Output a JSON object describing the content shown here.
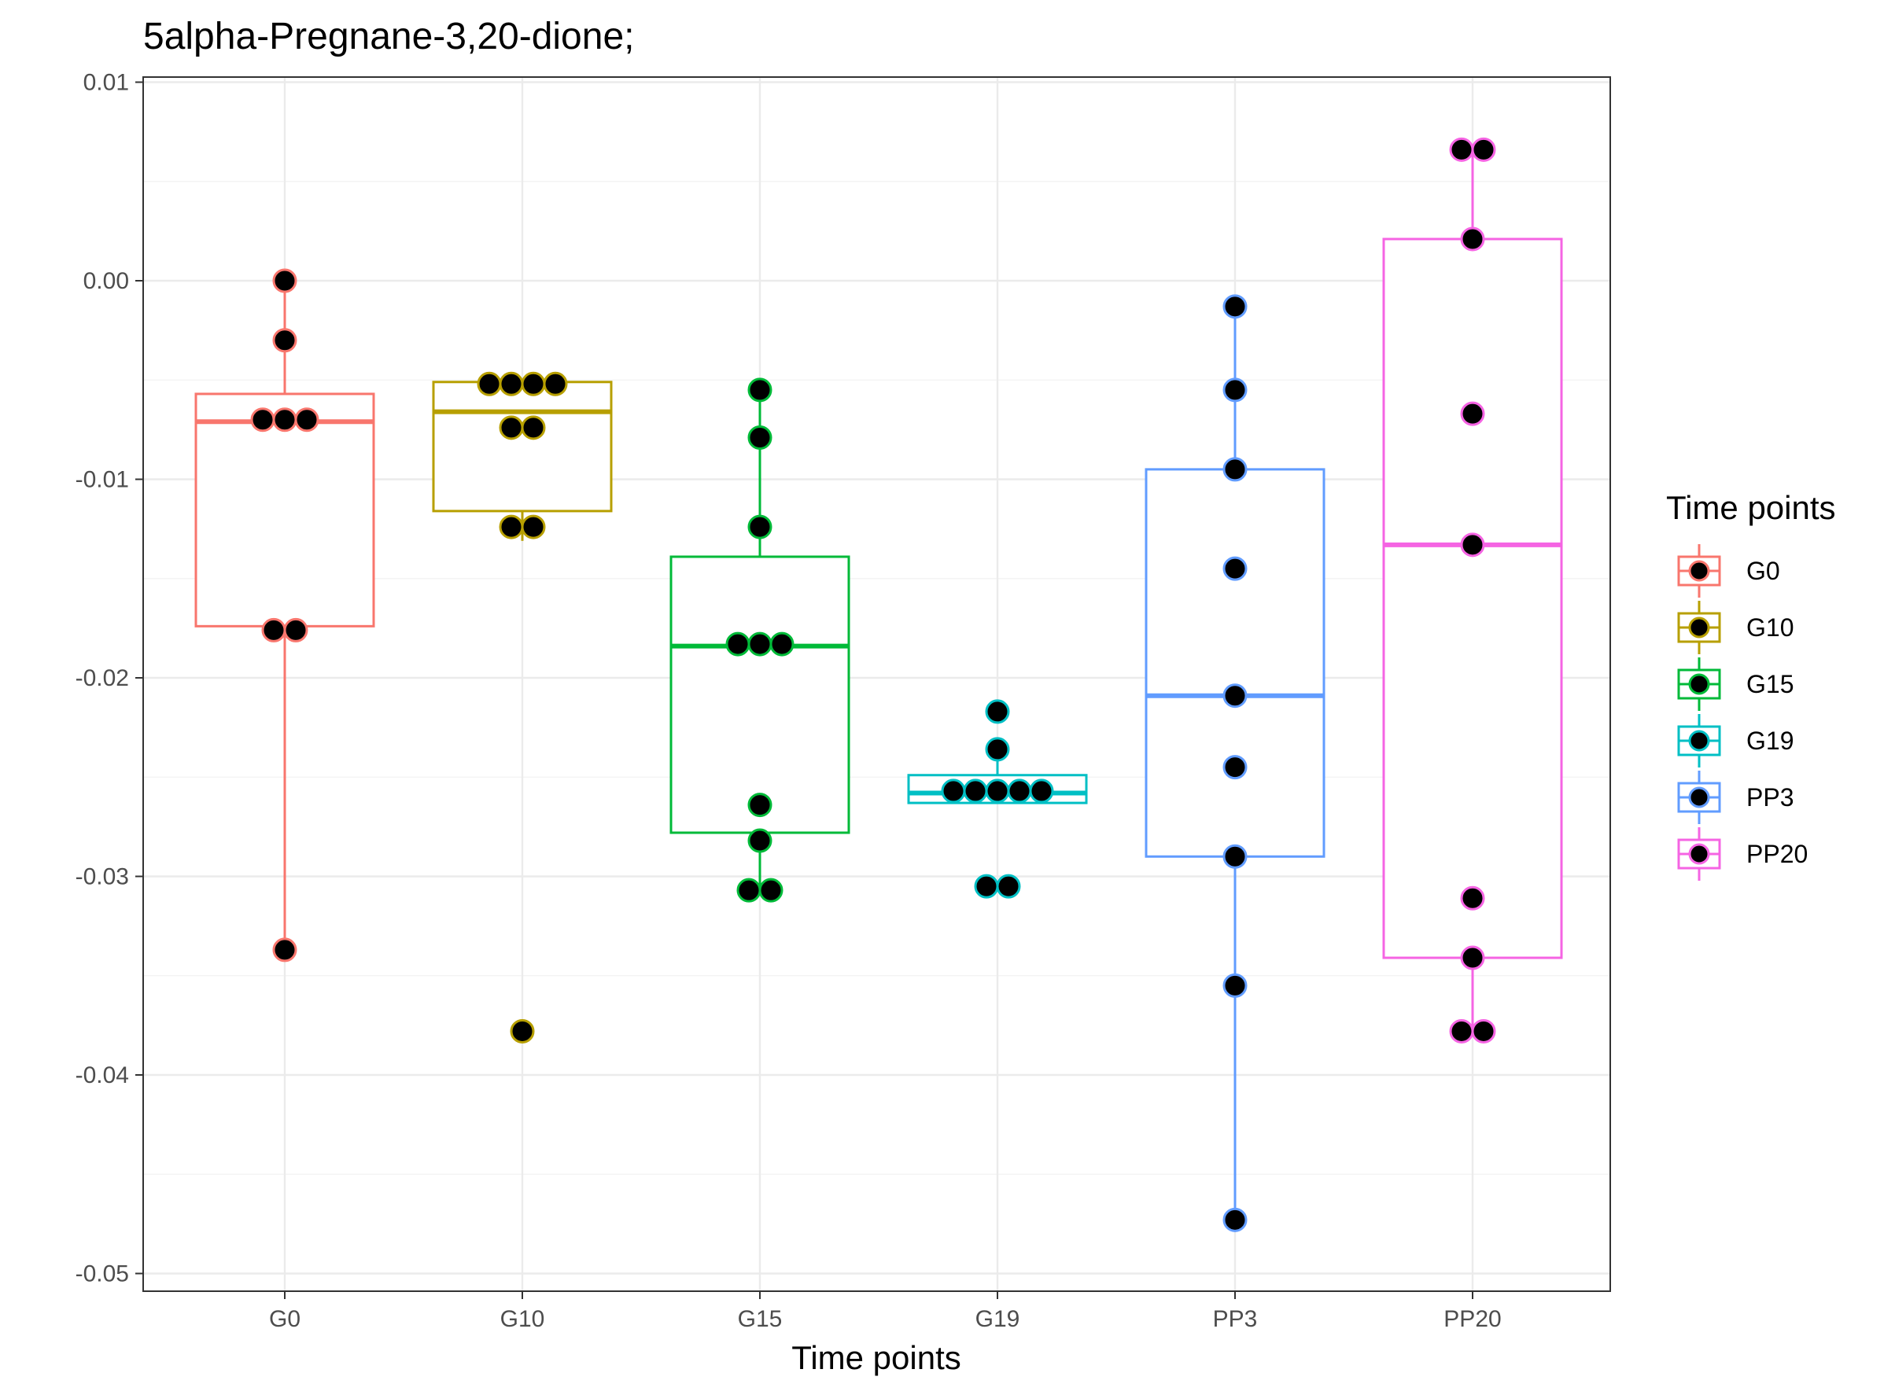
{
  "chart_data": {
    "type": "boxplot",
    "title": "5alpha-Pregnane-3,20-dione;",
    "xlabel": "Time points",
    "ylabel": "",
    "ylim": [
      -0.0505,
      0.0102
    ],
    "y_ticks": [
      0.01,
      0.0,
      -0.01,
      -0.02,
      -0.03,
      -0.04,
      -0.05
    ],
    "y_tick_labels": [
      "0.01",
      "0.00",
      "-0.01",
      "-0.02",
      "-0.03",
      "-0.04",
      "-0.05"
    ],
    "grid": true,
    "categories": [
      "G0",
      "G10",
      "G15",
      "G19",
      "PP3",
      "PP20"
    ],
    "legend": {
      "title": "Time points",
      "position": "right"
    },
    "series": [
      {
        "name": "G0",
        "color": "#F8766D",
        "box": {
          "lower_whisker": -0.0337,
          "q1": -0.0174,
          "median": -0.0071,
          "q3": -0.0057,
          "upper_whisker": 0.0
        },
        "points": [
          0.0,
          -0.003,
          -0.007,
          -0.007,
          -0.007,
          -0.0176,
          -0.0176,
          -0.0337
        ]
      },
      {
        "name": "G10",
        "color": "#B79F00",
        "box": {
          "lower_whisker": -0.0131,
          "q1": -0.0116,
          "median": -0.0066,
          "q3": -0.0051,
          "upper_whisker": -0.0051
        },
        "points": [
          -0.0052,
          -0.0052,
          -0.0052,
          -0.0052,
          -0.0074,
          -0.0074,
          -0.0124,
          -0.0124,
          -0.0378
        ]
      },
      {
        "name": "G15",
        "color": "#00BA38",
        "box": {
          "lower_whisker": -0.0307,
          "q1": -0.0278,
          "median": -0.0184,
          "q3": -0.0139,
          "upper_whisker": -0.0055
        },
        "points": [
          -0.0055,
          -0.0079,
          -0.0124,
          -0.0183,
          -0.0183,
          -0.0183,
          -0.0264,
          -0.0282,
          -0.0307,
          -0.0307
        ]
      },
      {
        "name": "G19",
        "color": "#00BFC4",
        "box": {
          "lower_whisker": -0.0263,
          "q1": -0.0263,
          "median": -0.0258,
          "q3": -0.0249,
          "upper_whisker": -0.0236
        },
        "points": [
          -0.0217,
          -0.0236,
          -0.0257,
          -0.0257,
          -0.0257,
          -0.0257,
          -0.0257,
          -0.0305,
          -0.0305
        ]
      },
      {
        "name": "PP3",
        "color": "#619CFF",
        "box": {
          "lower_whisker": -0.0473,
          "q1": -0.029,
          "median": -0.0209,
          "q3": -0.0095,
          "upper_whisker": -0.0013
        },
        "points": [
          -0.0013,
          -0.0055,
          -0.0095,
          -0.0145,
          -0.0209,
          -0.0245,
          -0.029,
          -0.0355,
          -0.0473
        ]
      },
      {
        "name": "PP20",
        "color": "#F564E3",
        "box": {
          "lower_whisker": -0.0378,
          "q1": -0.0341,
          "median": -0.0133,
          "q3": 0.0021,
          "upper_whisker": 0.0066
        },
        "points": [
          0.0066,
          0.0066,
          0.0021,
          -0.0067,
          -0.0133,
          -0.0311,
          -0.0341,
          -0.0378,
          -0.0378
        ]
      }
    ]
  }
}
